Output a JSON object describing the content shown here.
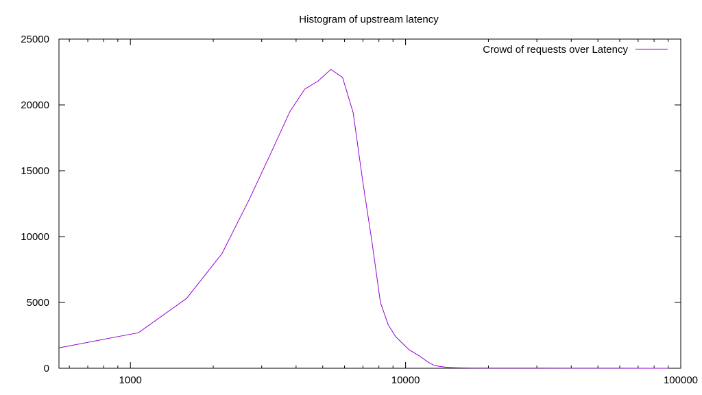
{
  "chart_data": {
    "type": "line",
    "title": "Histogram of upstream latency",
    "xlabel": "",
    "ylabel": "",
    "x_scale": "log",
    "xlim": [
      550,
      100000
    ],
    "ylim": [
      0,
      25000
    ],
    "x_ticks": [
      {
        "value": 1000,
        "label": "1000"
      },
      {
        "value": 10000,
        "label": "10000"
      },
      {
        "value": 100000,
        "label": "100000"
      }
    ],
    "y_ticks": [
      {
        "value": 0,
        "label": "0"
      },
      {
        "value": 5000,
        "label": "5000"
      },
      {
        "value": 10000,
        "label": "10000"
      },
      {
        "value": 15000,
        "label": "15000"
      },
      {
        "value": 20000,
        "label": "20000"
      },
      {
        "value": 25000,
        "label": "25000"
      }
    ],
    "grid": false,
    "legend": "top-right",
    "series": [
      {
        "name": "Crowd of requests over Latency",
        "color": "#9400d3",
        "x": [
          550,
          1070,
          1600,
          2150,
          2700,
          3250,
          3800,
          4300,
          4800,
          5350,
          5900,
          6450,
          7000,
          7550,
          8100,
          8650,
          9200,
          10300,
          11300,
          12000,
          12600,
          13200,
          13800,
          14500,
          15500,
          17000,
          20000,
          25000,
          30000,
          40000,
          60000,
          75000,
          90000
        ],
        "y": [
          1550,
          2700,
          5300,
          8700,
          12800,
          16400,
          19500,
          21200,
          21800,
          22700,
          22100,
          19400,
          14100,
          9600,
          5000,
          3300,
          2400,
          1400,
          900,
          500,
          250,
          150,
          100,
          50,
          30,
          20,
          15,
          10,
          8,
          5,
          3,
          2,
          1
        ]
      }
    ]
  }
}
